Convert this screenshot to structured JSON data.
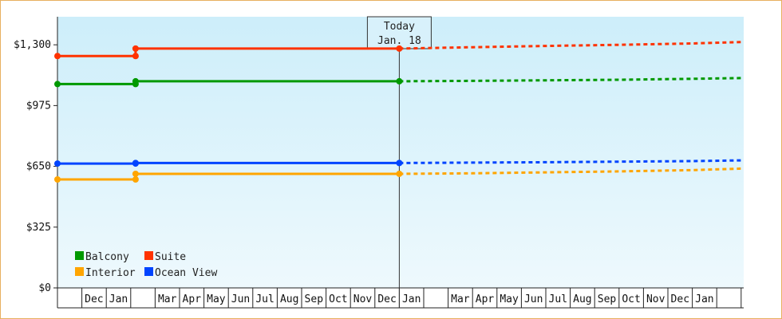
{
  "chart_data": {
    "type": "line",
    "title": "",
    "xlabel": "",
    "ylabel": "",
    "ylim": [
      0,
      1450
    ],
    "y_ticks": [
      {
        "value": 0,
        "label": "$0"
      },
      {
        "value": 325,
        "label": "$325"
      },
      {
        "value": 650,
        "label": "$650"
      },
      {
        "value": 975,
        "label": "$975"
      },
      {
        "value": 1300,
        "label": "$1,300"
      }
    ],
    "x_slots": [
      "",
      "Dec",
      "Jan",
      "",
      "Mar",
      "Apr",
      "May",
      "Jun",
      "Jul",
      "Aug",
      "Sep",
      "Oct",
      "Nov",
      "Dec",
      "Jan",
      "",
      "Mar",
      "Apr",
      "May",
      "Jun",
      "Jul",
      "Aug",
      "Sep",
      "Oct",
      "Nov",
      "Dec",
      "Jan",
      ""
    ],
    "today": {
      "line1": "Today",
      "line2": "Jan. 18",
      "slot": 14.0
    },
    "grid": false,
    "legend_position": "bottom-left",
    "series": [
      {
        "name": "Balcony",
        "color": "#009900",
        "history": [
          [
            0,
            1090
          ],
          [
            3.2,
            1090
          ],
          [
            3.2,
            1105
          ],
          [
            14.0,
            1105
          ]
        ],
        "forecast": [
          [
            14.0,
            1105
          ],
          [
            17,
            1107
          ],
          [
            20,
            1110
          ],
          [
            23,
            1113
          ],
          [
            26,
            1118
          ],
          [
            28,
            1122
          ]
        ],
        "markers": [
          [
            0,
            1090
          ],
          [
            3.2,
            1090
          ],
          [
            3.2,
            1105
          ],
          [
            14.0,
            1105
          ]
        ]
      },
      {
        "name": "Suite",
        "color": "#ff3300",
        "history": [
          [
            0,
            1240
          ],
          [
            3.2,
            1240
          ],
          [
            3.2,
            1280
          ],
          [
            14.0,
            1280
          ]
        ],
        "forecast": [
          [
            14.0,
            1280
          ],
          [
            17,
            1287
          ],
          [
            20,
            1294
          ],
          [
            23,
            1300
          ],
          [
            26,
            1307
          ],
          [
            28,
            1315
          ]
        ],
        "markers": [
          [
            0,
            1240
          ],
          [
            3.2,
            1240
          ],
          [
            3.2,
            1280
          ],
          [
            14.0,
            1280
          ]
        ]
      },
      {
        "name": "Interior",
        "color": "#ffa500",
        "history": [
          [
            0,
            580
          ],
          [
            3.2,
            580
          ],
          [
            3.2,
            610
          ],
          [
            14.0,
            610
          ]
        ],
        "forecast": [
          [
            14.0,
            610
          ],
          [
            17,
            613
          ],
          [
            20,
            618
          ],
          [
            23,
            623
          ],
          [
            26,
            630
          ],
          [
            28,
            638
          ]
        ],
        "markers": [
          [
            0,
            580
          ],
          [
            3.2,
            580
          ],
          [
            3.2,
            610
          ],
          [
            14.0,
            610
          ]
        ]
      },
      {
        "name": "Ocean View",
        "color": "#0044ff",
        "history": [
          [
            0,
            665
          ],
          [
            3.2,
            665
          ],
          [
            3.2,
            668
          ],
          [
            14.0,
            668
          ]
        ],
        "forecast": [
          [
            14.0,
            668
          ],
          [
            17,
            670
          ],
          [
            20,
            672
          ],
          [
            23,
            675
          ],
          [
            26,
            678
          ],
          [
            28,
            682
          ]
        ],
        "markers": [
          [
            0,
            665
          ],
          [
            3.2,
            665
          ],
          [
            3.2,
            668
          ],
          [
            14.0,
            668
          ]
        ]
      }
    ]
  }
}
